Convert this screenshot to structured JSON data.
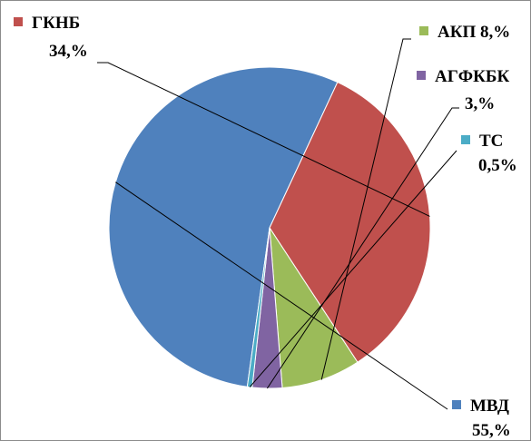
{
  "chart_data": {
    "type": "pie",
    "slices": [
      {
        "name": "МВД",
        "value": 55.0,
        "label_name": "МВД",
        "label_value": "55,%",
        "color": "#4f81bd"
      },
      {
        "name": "ГКНБ",
        "value": 34.0,
        "label_name": "ГКНБ",
        "label_value": "34,%",
        "color": "#c0504d"
      },
      {
        "name": "АКП",
        "value": 8.0,
        "label_name": "АКП 8,%",
        "label_value": "",
        "color": "#9bbb59"
      },
      {
        "name": "АГФКБК",
        "value": 3.0,
        "label_name": "АГФКБК",
        "label_value": "3,%",
        "color": "#8064a2"
      },
      {
        "name": "ТС",
        "value": 0.5,
        "label_name": "ТС",
        "label_value": "0,5%",
        "color": "#4bacc6"
      }
    ]
  }
}
